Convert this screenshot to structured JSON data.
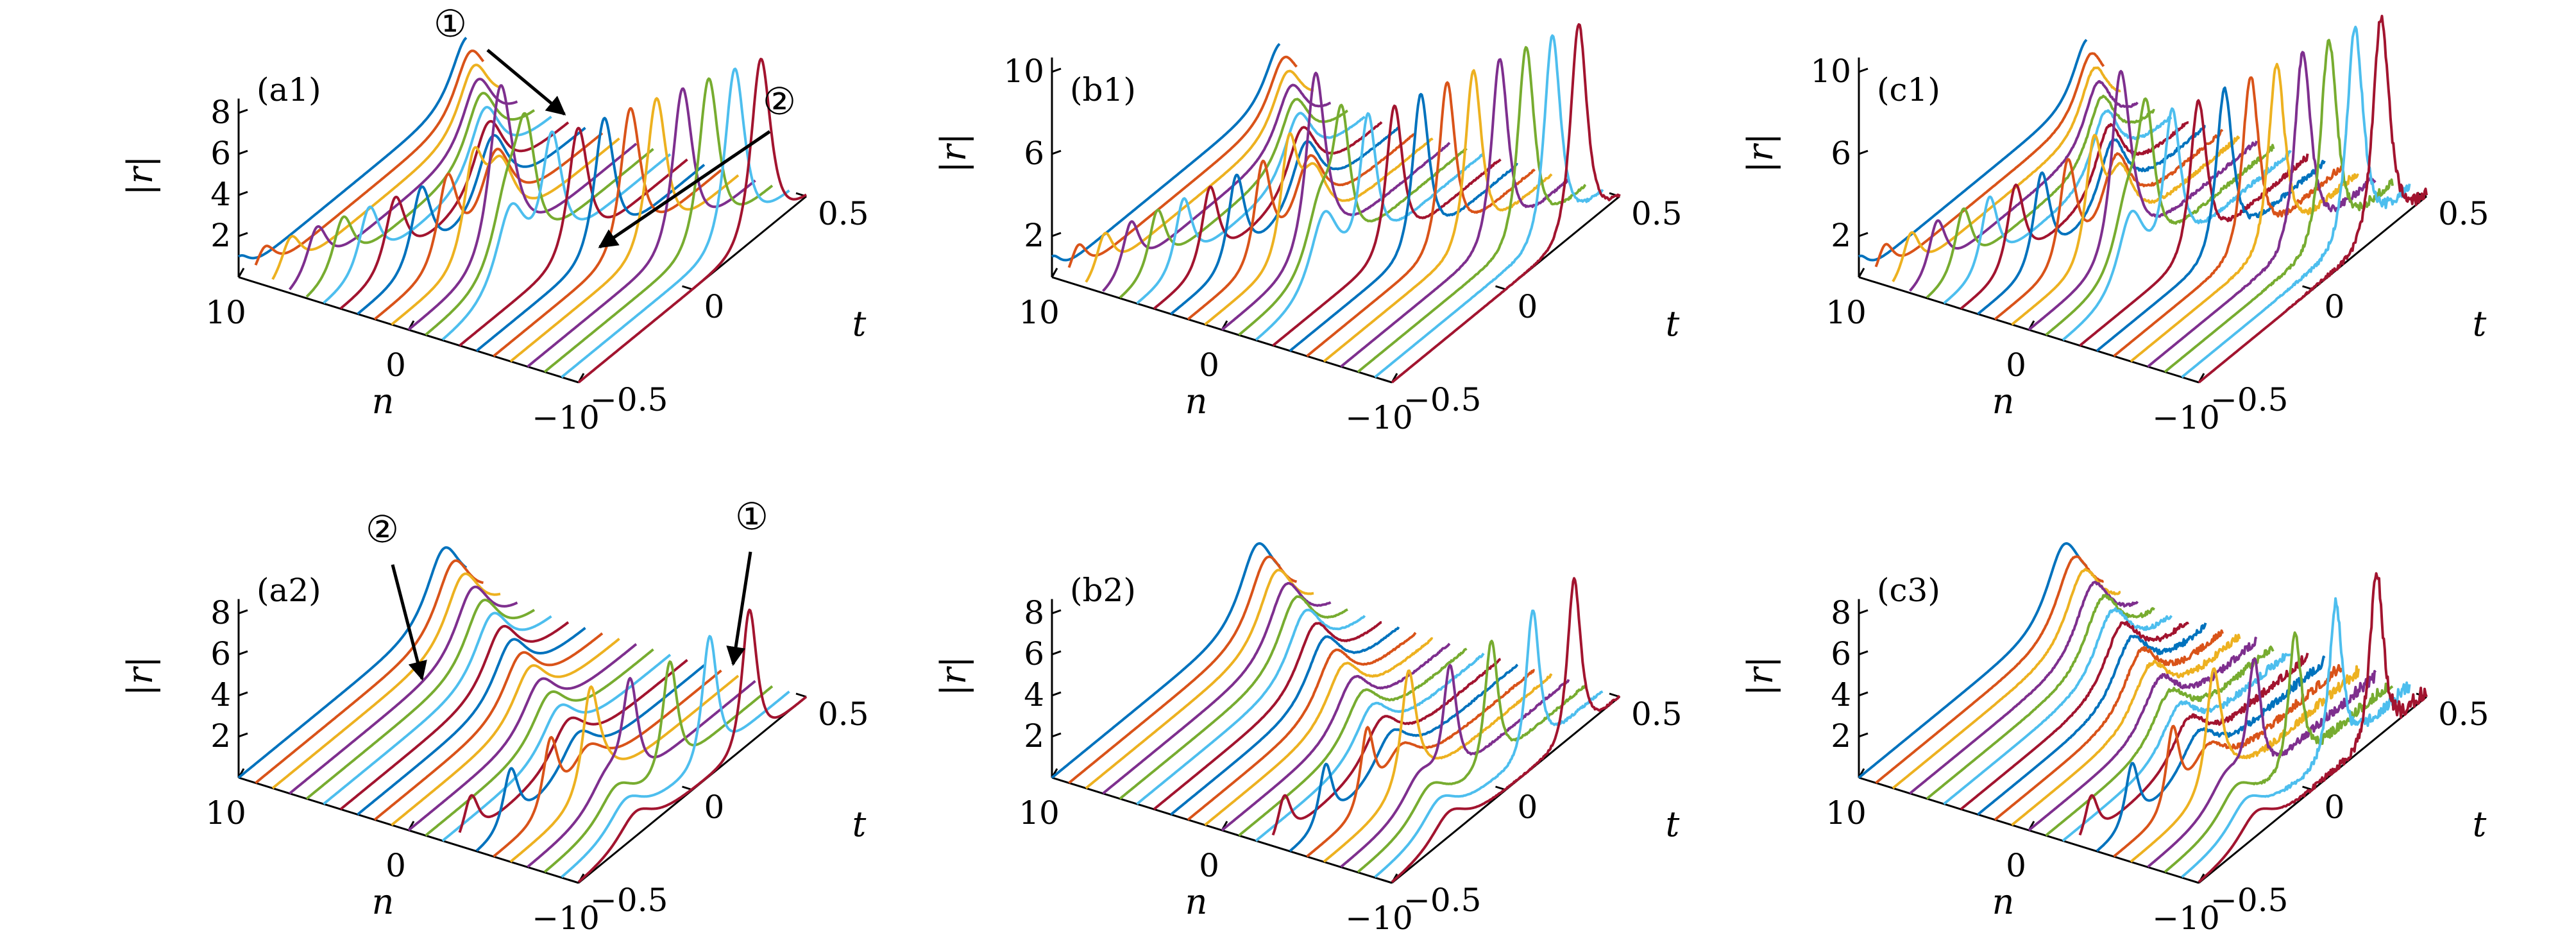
{
  "colors": [
    "#0072BD",
    "#D95319",
    "#EDB120",
    "#7E2F8E",
    "#77AC30",
    "#4DBEEE",
    "#A2142F"
  ],
  "chart_data": [
    {
      "panel": "(a1)",
      "type": "line",
      "zlabel": "|r|",
      "xlabel": "n",
      "ylabel": "t",
      "z_ticks": [
        "2",
        "4",
        "6",
        "8"
      ],
      "zlim": [
        0,
        9
      ],
      "n_ticks": [
        "10",
        "0",
        "−10"
      ],
      "t_ticks": [
        "0.5",
        "0",
        "−0.5"
      ],
      "n_range": [
        -10,
        10
      ],
      "t_range": [
        -0.5,
        0.5
      ],
      "noise": 0,
      "pulses": [
        {
          "n0": 10,
          "n1": -10,
          "t0": -0.5,
          "t1": 0.3,
          "amp0": 1.0,
          "amp1": 8.5,
          "w": 0.12
        },
        {
          "n0": -2,
          "n1": 10,
          "t0": -0.2,
          "t1": 0.5,
          "amp0": 3.8,
          "amp1": 2.6,
          "w": 0.18
        }
      ],
      "annotations": [
        {
          "text": "①"
        },
        {
          "text": "②"
        }
      ]
    },
    {
      "panel": "(b1)",
      "type": "line",
      "zlabel": "|r|",
      "xlabel": "n",
      "ylabel": "t",
      "z_ticks": [
        "2",
        "6",
        "10"
      ],
      "zlim": [
        0,
        11
      ],
      "n_ticks": [
        "10",
        "0",
        "−10"
      ],
      "t_ticks": [
        "0.5",
        "0",
        "−0.5"
      ],
      "n_range": [
        -10,
        10
      ],
      "t_range": [
        -0.5,
        0.5
      ],
      "noise": 0.08,
      "pulses": [
        {
          "n0": 10,
          "n1": -10,
          "t0": -0.5,
          "t1": 0.32,
          "amp0": 1.0,
          "amp1": 10.0,
          "w": 0.1
        },
        {
          "n0": -2,
          "n1": 10,
          "t0": -0.2,
          "t1": 0.5,
          "amp0": 3.5,
          "amp1": 2.3,
          "w": 0.17
        }
      ],
      "annotations": []
    },
    {
      "panel": "(c1)",
      "type": "line",
      "zlabel": "|r|",
      "xlabel": "n",
      "ylabel": "t",
      "z_ticks": [
        "2",
        "6",
        "10"
      ],
      "zlim": [
        0,
        11
      ],
      "n_ticks": [
        "10",
        "0",
        "−10"
      ],
      "t_ticks": [
        "0.5",
        "0",
        "−0.5"
      ],
      "n_range": [
        -10,
        10
      ],
      "t_range": [
        -0.5,
        0.5
      ],
      "noise": 0.35,
      "pulses": [
        {
          "n0": 10,
          "n1": -10,
          "t0": -0.5,
          "t1": 0.3,
          "amp0": 1.0,
          "amp1": 10.5,
          "w": 0.1
        },
        {
          "n0": -2,
          "n1": 10,
          "t0": -0.2,
          "t1": 0.5,
          "amp0": 3.5,
          "amp1": 2.5,
          "w": 0.16
        }
      ],
      "annotations": []
    },
    {
      "panel": "(a2)",
      "type": "line",
      "zlabel": "|r|",
      "xlabel": "n",
      "ylabel": "t",
      "z_ticks": [
        "2",
        "4",
        "6",
        "8"
      ],
      "zlim": [
        0,
        9
      ],
      "n_ticks": [
        "10",
        "0",
        "−10"
      ],
      "t_ticks": [
        "0.5",
        "0",
        "−0.5"
      ],
      "n_range": [
        -10,
        10
      ],
      "t_range": [
        -0.5,
        0.5
      ],
      "noise": 0,
      "pulses": [
        {
          "n0": -10,
          "n1": 10,
          "t0": -0.25,
          "t1": 0.4,
          "amp0": 1.2,
          "amp1": 3.0,
          "w": 0.2
        },
        {
          "n0": -3,
          "n1": -10,
          "t0": -0.45,
          "t1": 0.25,
          "amp0": 2.0,
          "amp1": 6.5,
          "w": 0.09
        }
      ],
      "annotations": [
        {
          "text": "②"
        },
        {
          "text": "①"
        }
      ]
    },
    {
      "panel": "(b2)",
      "type": "line",
      "zlabel": "|r|",
      "xlabel": "n",
      "ylabel": "t",
      "z_ticks": [
        "2",
        "4",
        "6",
        "8"
      ],
      "zlim": [
        0,
        9
      ],
      "n_ticks": [
        "10",
        "0",
        "−10"
      ],
      "t_ticks": [
        "0.5",
        "0",
        "−0.5"
      ],
      "n_range": [
        -10,
        10
      ],
      "t_range": [
        -0.5,
        0.5
      ],
      "noise": 0.1,
      "pulses": [
        {
          "n0": -10,
          "n1": 10,
          "t0": -0.25,
          "t1": 0.4,
          "amp0": 1.2,
          "amp1": 3.2,
          "w": 0.2
        },
        {
          "n0": -3,
          "n1": -10,
          "t0": -0.45,
          "t1": 0.3,
          "amp0": 2.0,
          "amp1": 7.5,
          "w": 0.08
        }
      ],
      "annotations": []
    },
    {
      "panel": "(c3)",
      "type": "line",
      "zlabel": "|r|",
      "xlabel": "n",
      "ylabel": "t",
      "z_ticks": [
        "2",
        "4",
        "6",
        "8"
      ],
      "zlim": [
        0,
        9
      ],
      "n_ticks": [
        "10",
        "0",
        "−10"
      ],
      "t_ticks": [
        "0.5",
        "0",
        "−0.5"
      ],
      "n_range": [
        -10,
        10
      ],
      "t_range": [
        -0.5,
        0.5
      ],
      "noise": 0.55,
      "pulses": [
        {
          "n0": -10,
          "n1": 10,
          "t0": -0.25,
          "t1": 0.4,
          "amp0": 1.2,
          "amp1": 3.2,
          "w": 0.2
        },
        {
          "n0": -3,
          "n1": -10,
          "t0": -0.45,
          "t1": 0.28,
          "amp0": 2.0,
          "amp1": 8.0,
          "w": 0.08
        }
      ],
      "annotations": []
    }
  ]
}
